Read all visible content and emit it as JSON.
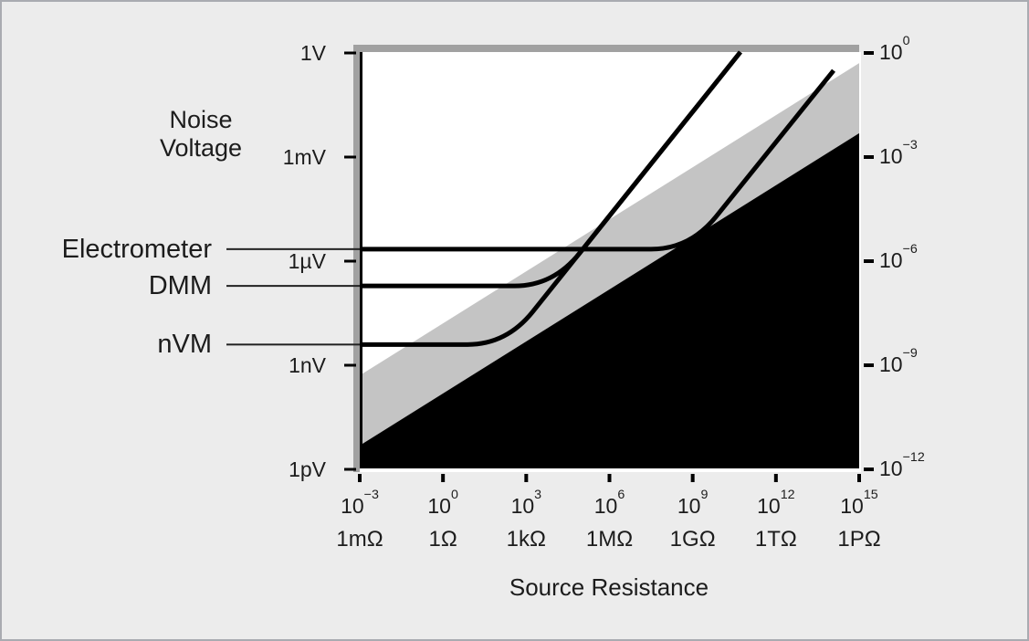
{
  "figure": {
    "bg": "#ececec",
    "border_color": "#a9abb1",
    "plot_bg": "#ffffff",
    "frame_bar_color": "#a1a1a1",
    "axis_line_color": "#000000",
    "curve_color": "#000000",
    "leader_line_color": "#222222",
    "text_color": "#1c1c1c"
  },
  "ylabel": {
    "line1": "Noise",
    "line2": "Voltage"
  },
  "xlabel": "Source Resistance",
  "chart_data": {
    "type": "line",
    "title": "",
    "xlabel": "Source Resistance",
    "ylabel": "Noise Voltage",
    "x_scale": "log",
    "y_scale": "log",
    "x_range_ohms": [
      0.001,
      1000000000000000.0
    ],
    "y_range_volts": [
      1e-12,
      1
    ],
    "grid": false,
    "legend_position": "labels-left-of-axis",
    "x_ticks": [
      {
        "exp": "−3",
        "ohm": "1mΩ"
      },
      {
        "exp": "0",
        "ohm": "1Ω"
      },
      {
        "exp": "3",
        "ohm": "1kΩ"
      },
      {
        "exp": "6",
        "ohm": "1MΩ"
      },
      {
        "exp": "9",
        "ohm": "1GΩ"
      },
      {
        "exp": "12",
        "ohm": "1TΩ"
      },
      {
        "exp": "15",
        "ohm": "1PΩ"
      }
    ],
    "y_ticks_left": [
      "1V",
      "1mV",
      "1µV",
      "1nV",
      "1pV"
    ],
    "y_ticks_right_exp": [
      "0",
      "−3",
      "−6",
      "−9",
      "−12"
    ],
    "series": [
      {
        "name": "Electrometer",
        "floor_volts": 2e-06,
        "rise_slope_decades": 1,
        "points_log10_r_v": [
          [
            -3,
            -5.68
          ],
          [
            8.9,
            -5.68
          ],
          [
            14.08,
            -0.53
          ]
        ]
      },
      {
        "name": "DMM",
        "floor_volts": 2e-07,
        "rise_slope_decades": 1,
        "points_log10_r_v": [
          [
            -3,
            -6.74
          ],
          [
            3.98,
            -6.74
          ],
          [
            10.72,
            0
          ]
        ]
      },
      {
        "name": "nVM",
        "floor_volts": 4e-09,
        "rise_slope_decades": 1,
        "points_log10_r_v": [
          [
            -3,
            -8.43
          ],
          [
            2.29,
            -8.43
          ],
          [
            10.72,
            0
          ]
        ]
      }
    ],
    "regions": [
      {
        "name": "near-limit-band",
        "color": "#c4c4c4",
        "slope_decades": 0.5,
        "top_boundary_log10_r_v": [
          [
            -3,
            -9.32
          ],
          [
            15,
            -0.32
          ]
        ]
      },
      {
        "name": "theoretical-limit-region",
        "color": "#000000",
        "slope_decades": 0.5,
        "top_boundary_log10_r_v": [
          [
            -3,
            -11.34
          ],
          [
            15,
            -2.34
          ]
        ]
      }
    ]
  }
}
